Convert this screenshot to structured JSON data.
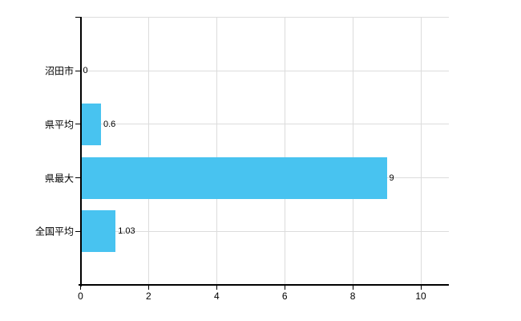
{
  "chart_data": {
    "type": "bar",
    "orientation": "horizontal",
    "title": "",
    "xlabel": "",
    "ylabel": "",
    "categories": [
      "沼田市",
      "県平均",
      "県最大",
      "全国平均"
    ],
    "values": [
      0,
      0.6,
      9,
      1.03
    ],
    "value_labels": [
      "0",
      "0.6",
      "9",
      "1.03"
    ],
    "x_ticks": [
      0,
      2,
      4,
      6,
      8,
      10
    ],
    "x_tick_labels": [
      "0",
      "2",
      "4",
      "6",
      "8",
      "10"
    ],
    "xlim": [
      0,
      10
    ],
    "grid": true,
    "legend": false,
    "colors": {
      "bar": "#48C3F0",
      "gridline": "#DCDCDC",
      "axis": "#000000",
      "text": "#000000",
      "background": "#FFFFFF"
    }
  }
}
